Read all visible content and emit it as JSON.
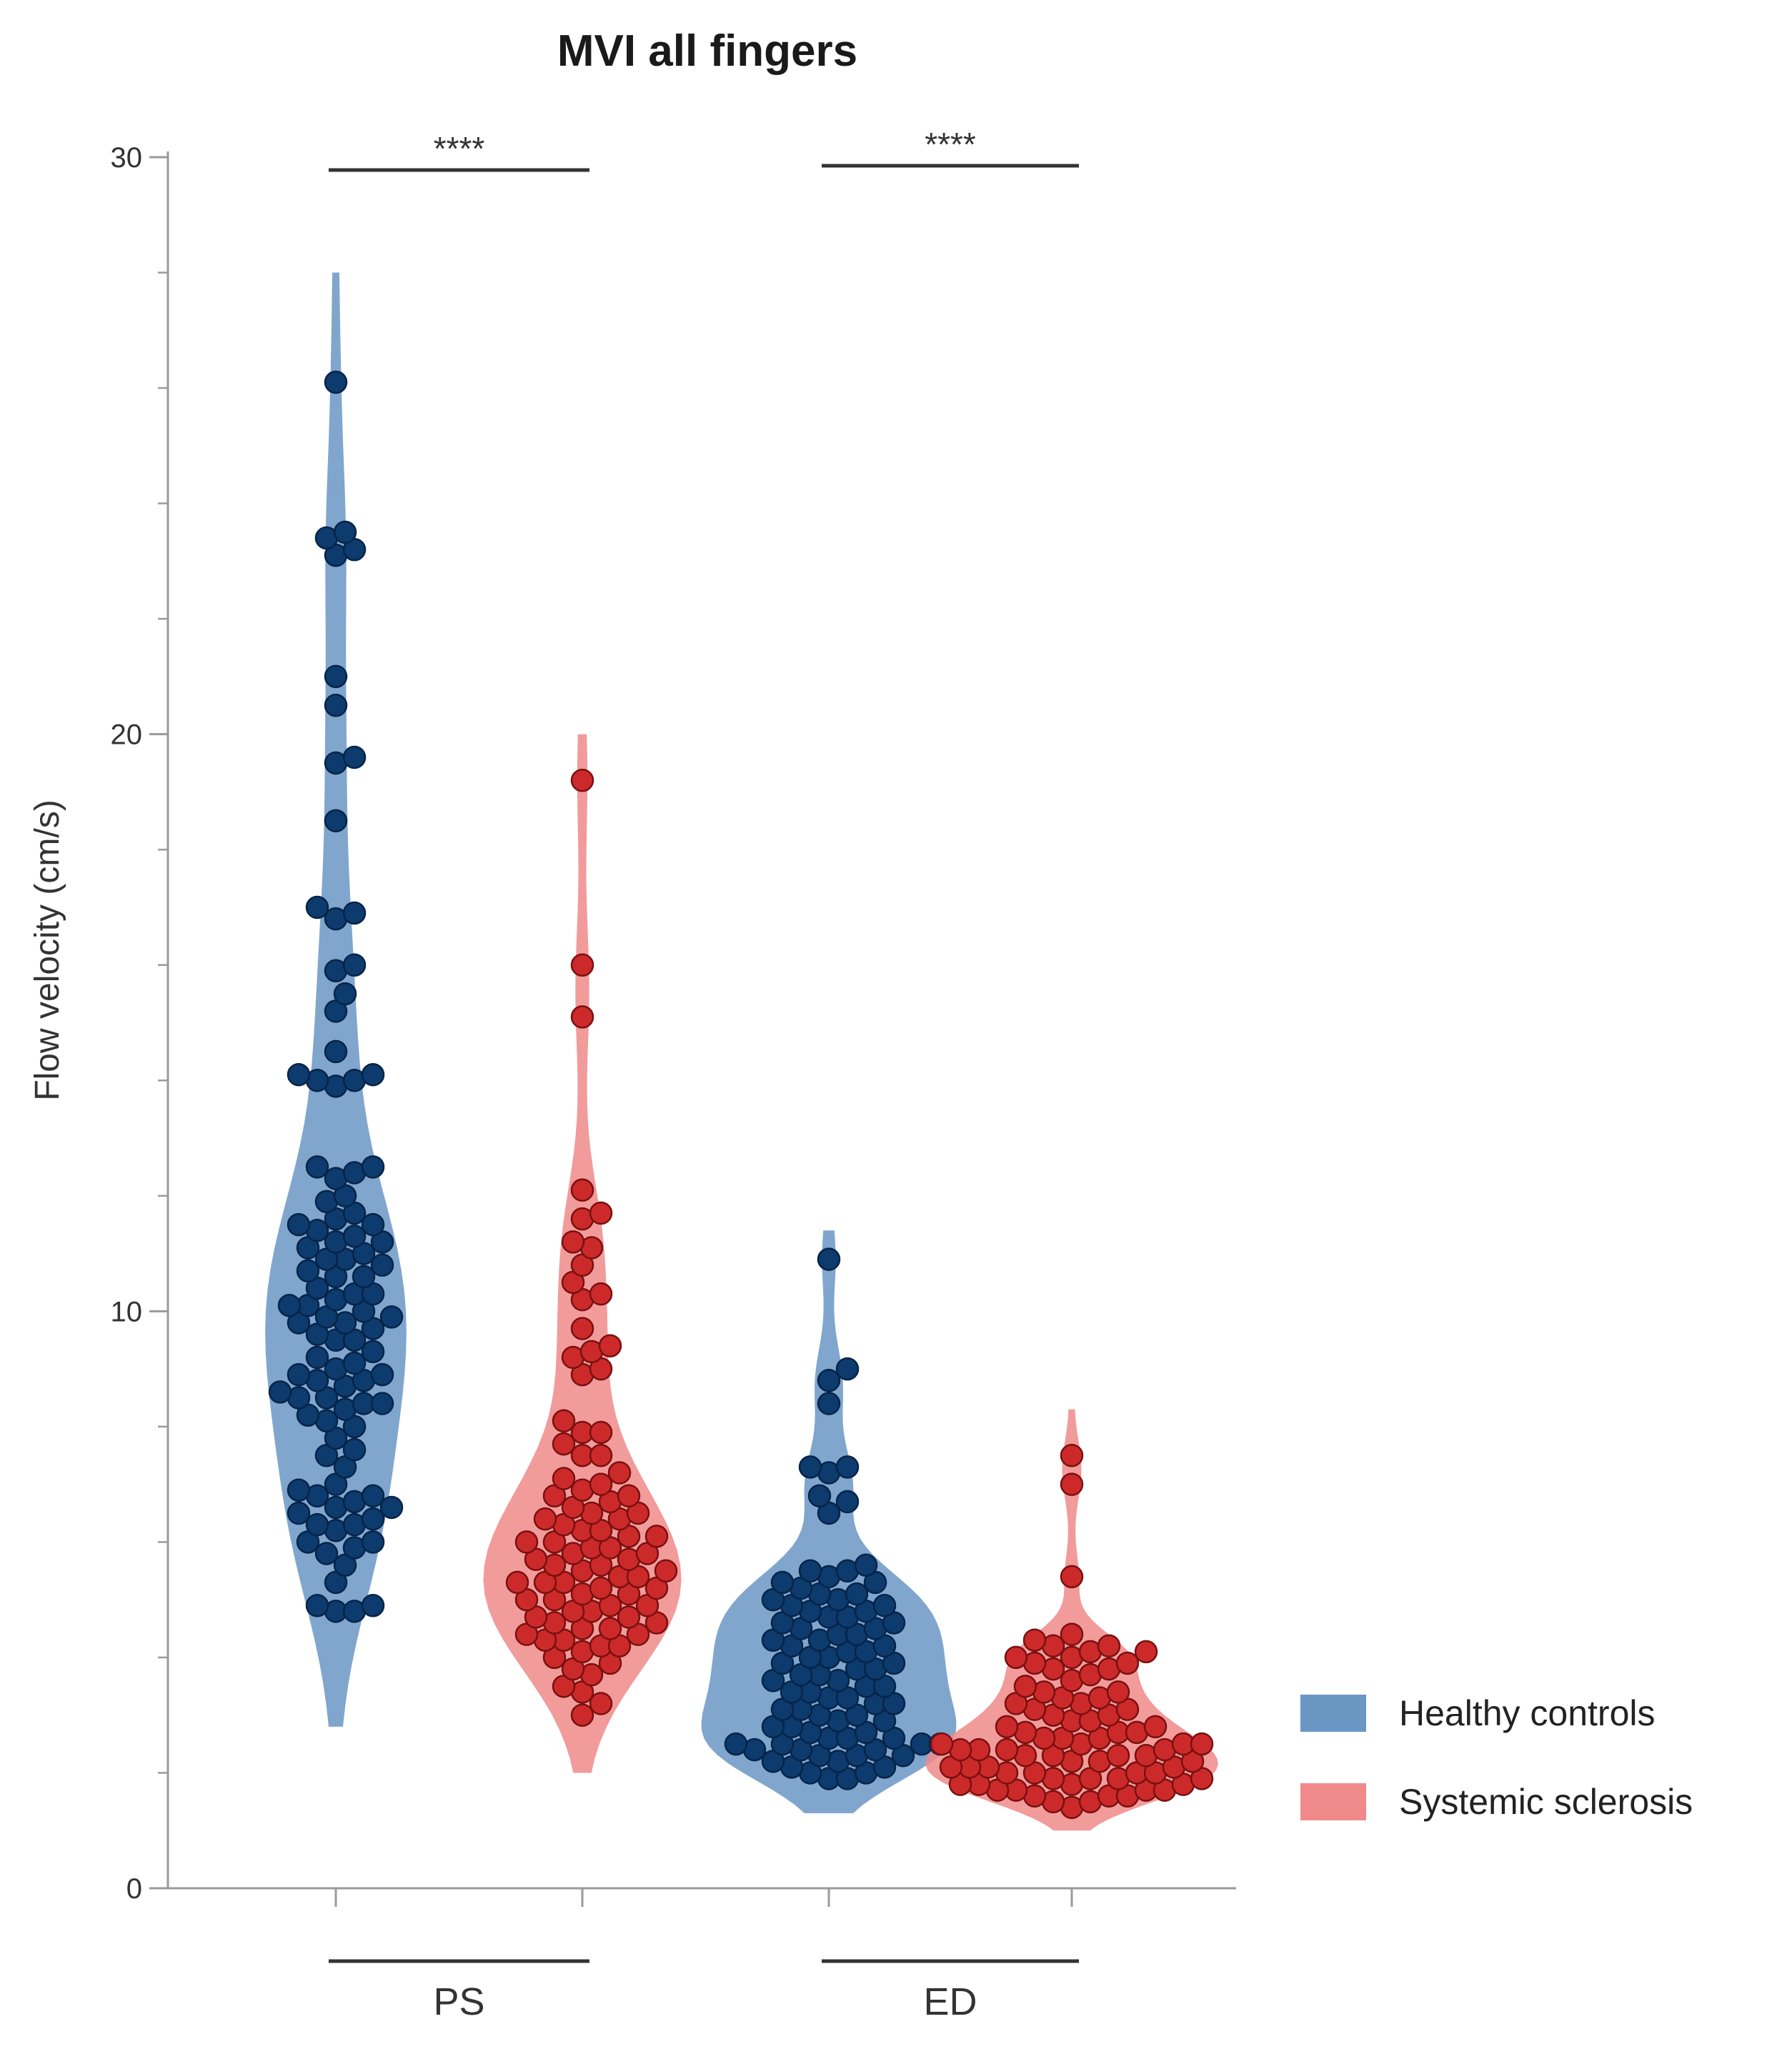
{
  "chart_data": {
    "type": "scatter",
    "subtype": "violin-swarm",
    "title": "MVI all fingers",
    "ylabel": "Flow velocity (cm/s)",
    "ylim": [
      0,
      30
    ],
    "yticks": [
      0,
      10,
      20,
      30
    ],
    "yminor_tick_step": 2,
    "groups": [
      "PS",
      "ED"
    ],
    "significance": [
      {
        "group": "PS",
        "label": "****"
      },
      {
        "group": "ED",
        "label": "****"
      }
    ],
    "legend": {
      "position": "right"
    },
    "series": [
      {
        "name": "Healthy controls",
        "group": "PS",
        "fill_color": "#6a96c4",
        "dot_color": "#0d3b6e",
        "edge_color": "#062448",
        "violin_range": [
          2.8,
          28.0
        ],
        "values": [
          26.1,
          23.1,
          23.2,
          23.4,
          23.5,
          21.0,
          20.5,
          19.6,
          19.5,
          18.5,
          17.0,
          16.9,
          16.8,
          16.0,
          15.9,
          15.5,
          15.2,
          14.5,
          14.1,
          14.0,
          14.1,
          13.9,
          14.0,
          12.5,
          12.3,
          12.5,
          12.4,
          12.0,
          11.9,
          11.7,
          11.5,
          11.5,
          11.6,
          11.3,
          11.4,
          11.2,
          11.2,
          11.0,
          11.1,
          10.9,
          10.8,
          10.9,
          10.7,
          10.6,
          10.6,
          10.4,
          10.3,
          10.3,
          10.2,
          10.1,
          10.1,
          10.0,
          9.9,
          9.9,
          9.8,
          9.8,
          9.7,
          9.6,
          9.5,
          9.5,
          9.3,
          9.2,
          9.1,
          9.0,
          8.9,
          8.9,
          8.8,
          8.8,
          8.7,
          8.6,
          8.5,
          8.5,
          8.4,
          8.4,
          8.3,
          8.2,
          8.1,
          8.0,
          7.8,
          7.6,
          7.5,
          7.3,
          7.0,
          6.9,
          6.8,
          6.8,
          6.7,
          6.6,
          6.6,
          6.5,
          6.4,
          6.3,
          6.3,
          6.2,
          6.0,
          6.0,
          5.9,
          5.8,
          5.6,
          5.3,
          4.9,
          4.8,
          4.8,
          4.9
        ]
      },
      {
        "name": "Systemic sclerosis",
        "group": "PS",
        "fill_color": "#f08a8a",
        "dot_color": "#cc2a2a",
        "edge_color": "#7a1010",
        "violin_range": [
          2.0,
          20.0
        ],
        "values": [
          19.2,
          16.0,
          15.1,
          12.1,
          11.7,
          11.6,
          11.2,
          11.1,
          10.8,
          10.5,
          10.3,
          10.2,
          9.7,
          9.4,
          9.3,
          9.2,
          9.0,
          8.9,
          8.1,
          7.9,
          7.9,
          7.7,
          7.5,
          7.5,
          7.2,
          7.1,
          7.0,
          6.9,
          6.8,
          6.8,
          6.7,
          6.6,
          6.5,
          6.5,
          6.4,
          6.4,
          6.3,
          6.2,
          6.2,
          6.1,
          6.1,
          6.0,
          6.0,
          5.9,
          5.9,
          5.8,
          5.8,
          5.7,
          5.7,
          5.6,
          5.6,
          5.5,
          5.5,
          5.4,
          5.4,
          5.3,
          5.3,
          5.3,
          5.2,
          5.2,
          5.1,
          5.1,
          5.0,
          5.0,
          4.9,
          4.9,
          4.8,
          4.8,
          4.7,
          4.7,
          4.6,
          4.6,
          4.5,
          4.5,
          4.4,
          4.4,
          4.3,
          4.3,
          4.2,
          4.2,
          4.1,
          4.0,
          3.9,
          3.8,
          3.7,
          3.5,
          3.4,
          3.2,
          3.0
        ]
      },
      {
        "name": "Healthy controls",
        "group": "ED",
        "fill_color": "#6a96c4",
        "dot_color": "#0d3b6e",
        "edge_color": "#062448",
        "violin_range": [
          1.3,
          11.4
        ],
        "values": [
          10.9,
          9.0,
          8.8,
          8.4,
          7.3,
          7.2,
          7.3,
          6.8,
          6.7,
          6.5,
          5.6,
          5.5,
          5.5,
          5.4,
          5.3,
          5.3,
          5.2,
          5.1,
          5.1,
          5.0,
          5.0,
          4.9,
          4.9,
          4.8,
          4.8,
          4.7,
          4.7,
          4.6,
          4.6,
          4.5,
          4.5,
          4.4,
          4.4,
          4.3,
          4.3,
          4.2,
          4.2,
          4.1,
          4.1,
          4.0,
          4.0,
          3.9,
          3.9,
          3.8,
          3.8,
          3.7,
          3.7,
          3.6,
          3.6,
          3.5,
          3.5,
          3.4,
          3.4,
          3.3,
          3.3,
          3.2,
          3.2,
          3.1,
          3.1,
          3.0,
          3.0,
          2.9,
          2.9,
          2.8,
          2.8,
          2.7,
          2.7,
          2.6,
          2.6,
          2.6,
          2.5,
          2.5,
          2.5,
          2.5,
          2.4,
          2.4,
          2.4,
          2.3,
          2.3,
          2.3,
          2.2,
          2.2,
          2.1,
          2.1,
          2.0,
          2.0,
          1.9,
          1.9
        ]
      },
      {
        "name": "Systemic sclerosis",
        "group": "ED",
        "fill_color": "#f08a8a",
        "dot_color": "#cc2a2a",
        "edge_color": "#7a1010",
        "violin_range": [
          1.0,
          8.3
        ],
        "values": [
          7.5,
          7.0,
          5.4,
          4.4,
          4.3,
          4.2,
          4.2,
          4.1,
          4.1,
          4.0,
          4.0,
          3.9,
          3.9,
          3.8,
          3.8,
          3.7,
          3.6,
          3.5,
          3.4,
          3.4,
          3.3,
          3.3,
          3.2,
          3.2,
          3.1,
          3.1,
          3.0,
          3.0,
          2.9,
          2.9,
          2.8,
          2.8,
          2.7,
          2.7,
          2.7,
          2.6,
          2.6,
          2.6,
          2.5,
          2.5,
          2.5,
          2.5,
          2.4,
          2.4,
          2.4,
          2.4,
          2.3,
          2.3,
          2.3,
          2.3,
          2.2,
          2.2,
          2.2,
          2.2,
          2.1,
          2.1,
          2.1,
          2.1,
          2.0,
          2.0,
          2.0,
          2.0,
          1.9,
          1.9,
          1.9,
          1.9,
          1.8,
          1.8,
          1.8,
          1.8,
          1.7,
          1.7,
          1.7,
          1.7,
          1.6,
          1.6,
          1.6,
          1.5,
          1.5,
          1.4
        ]
      }
    ],
    "legend_entries": [
      {
        "name": "Healthy controls",
        "color": "#6a96c4"
      },
      {
        "name": "Systemic sclerosis",
        "color": "#f08a8a"
      }
    ]
  }
}
